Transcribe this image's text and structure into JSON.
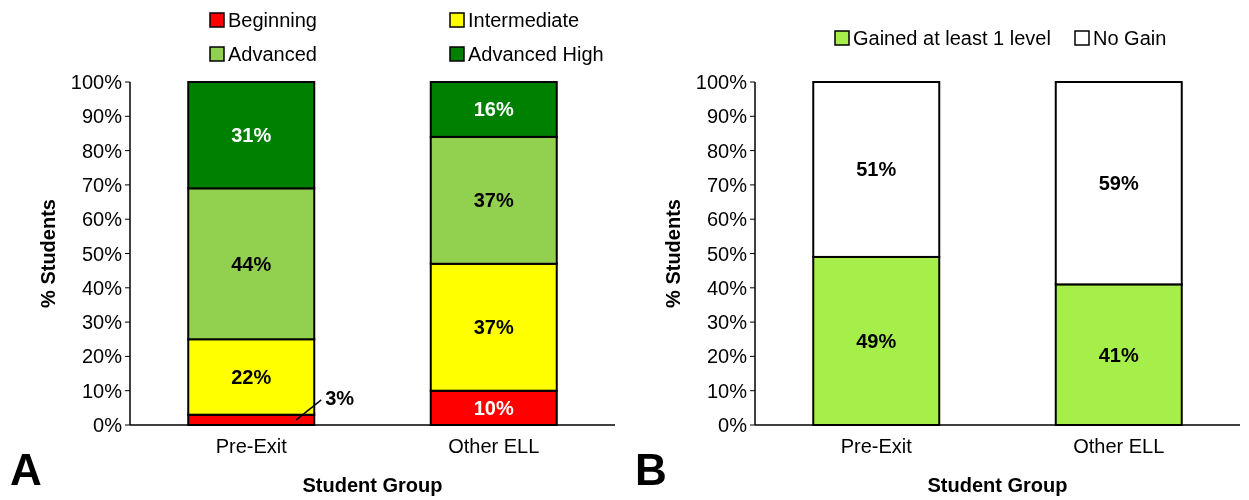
{
  "chart_data": [
    {
      "type": "bar",
      "stacked": true,
      "categories": [
        "Pre-Exit",
        "Other ELL"
      ],
      "series": [
        {
          "name": "Beginning",
          "color": "#ff0000",
          "values": [
            3,
            10
          ],
          "value_labels": [
            "3%",
            "10%"
          ]
        },
        {
          "name": "Intermediate",
          "color": "#ffff00",
          "values": [
            22,
            37
          ],
          "value_labels": [
            "22%",
            "37%"
          ]
        },
        {
          "name": "Advanced",
          "color": "#92d050",
          "values": [
            44,
            37
          ],
          "value_labels": [
            "44%",
            "37%"
          ]
        },
        {
          "name": "Advanced High",
          "color": "#008000",
          "values": [
            31,
            16
          ],
          "value_labels": [
            "31%",
            "16%"
          ]
        }
      ],
      "ylim": [
        0,
        100
      ],
      "yticks": [
        {
          "value": 0,
          "label": "0%"
        },
        {
          "value": 10,
          "label": "10%"
        },
        {
          "value": 20,
          "label": "20%"
        },
        {
          "value": 30,
          "label": "30%"
        },
        {
          "value": 40,
          "label": "40%"
        },
        {
          "value": 50,
          "label": "50%"
        },
        {
          "value": 60,
          "label": "60%"
        },
        {
          "value": 70,
          "label": "70%"
        },
        {
          "value": 80,
          "label": "80%"
        },
        {
          "value": 90,
          "label": "90%"
        },
        {
          "value": 100,
          "label": "100%"
        }
      ],
      "xlabel": "Student Group",
      "ylabel": "% Students",
      "legend": "top",
      "grid": false,
      "annotations": [
        "A"
      ]
    },
    {
      "type": "bar",
      "stacked": true,
      "categories": [
        "Pre-Exit",
        "Other ELL"
      ],
      "series": [
        {
          "name": "Gained at least 1 level",
          "color": "#a6ef4a",
          "values": [
            49,
            41
          ],
          "value_labels": [
            "49%",
            "41%"
          ]
        },
        {
          "name": "No Gain",
          "color": "#ffffff",
          "values": [
            51,
            59
          ],
          "value_labels": [
            "51%",
            "59%"
          ]
        }
      ],
      "ylim": [
        0,
        100
      ],
      "yticks": [
        {
          "value": 0,
          "label": "0%"
        },
        {
          "value": 10,
          "label": "10%"
        },
        {
          "value": 20,
          "label": "20%"
        },
        {
          "value": 30,
          "label": "30%"
        },
        {
          "value": 40,
          "label": "40%"
        },
        {
          "value": 50,
          "label": "50%"
        },
        {
          "value": 60,
          "label": "60%"
        },
        {
          "value": 70,
          "label": "70%"
        },
        {
          "value": 80,
          "label": "80%"
        },
        {
          "value": 90,
          "label": "90%"
        },
        {
          "value": 100,
          "label": "100%"
        }
      ],
      "xlabel": "Student Group",
      "ylabel": "% Students",
      "legend": "top",
      "grid": false,
      "annotations": [
        "B"
      ]
    }
  ]
}
